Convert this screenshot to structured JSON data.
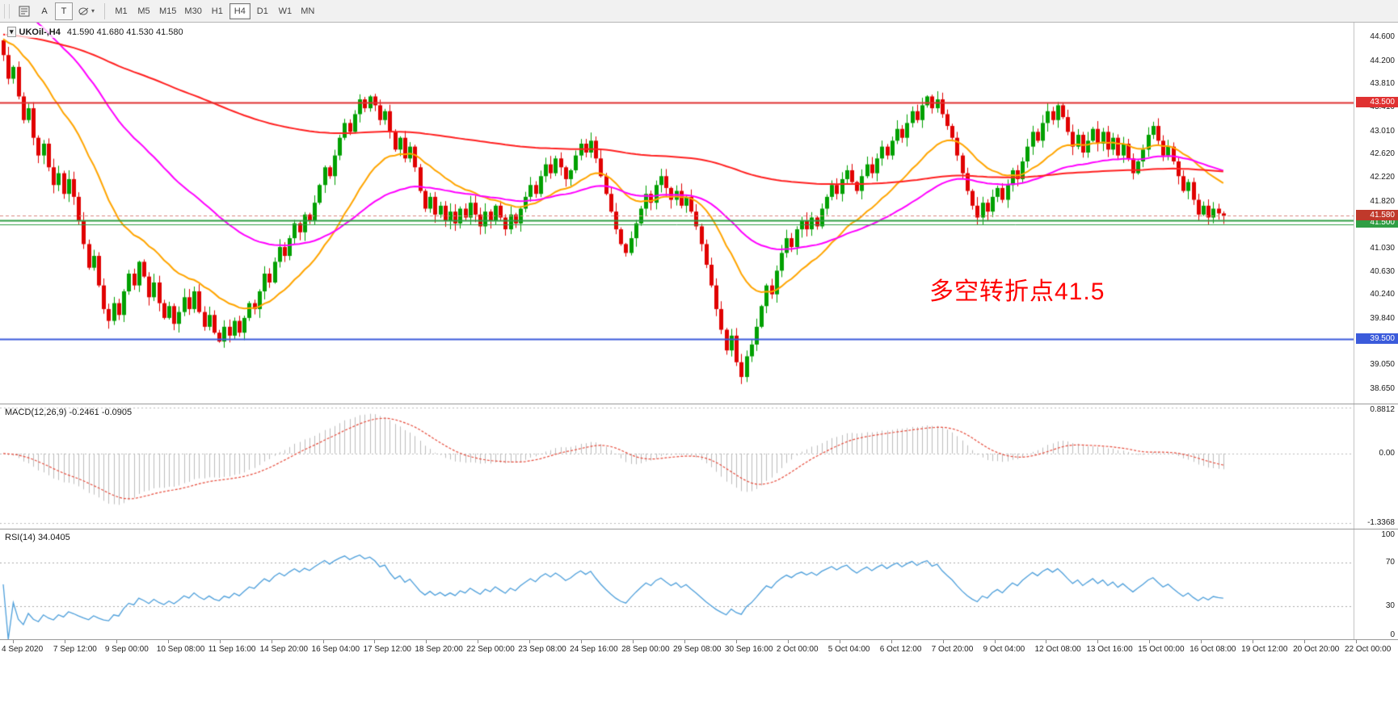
{
  "toolbar": {
    "tool_a_label": "A",
    "tool_t_label": "T",
    "timeframes": [
      "M1",
      "M5",
      "M15",
      "M30",
      "H1",
      "H4",
      "D1",
      "W1",
      "MN"
    ],
    "active_timeframe": "H4"
  },
  "main_chart": {
    "symbol": "UKOil-,H4",
    "ohlc": "41.590 41.680 41.530 41.580",
    "annotation": {
      "text": "多空转折点41.5",
      "color": "#FF0000"
    },
    "price_axis_labels": [
      "44.600",
      "44.200",
      "43.810",
      "43.410",
      "43.010",
      "42.620",
      "42.220",
      "41.820",
      "41.430",
      "41.030",
      "40.630",
      "40.240",
      "39.840",
      "39.440",
      "39.050",
      "38.650"
    ],
    "price_tags": [
      {
        "text": "43.500",
        "price": 43.5,
        "color": "#E03131"
      },
      {
        "text": "41.500",
        "price": 41.465,
        "color": "#2F9E44"
      },
      {
        "text": "41.580",
        "price": 41.58,
        "color": "#C0392B"
      },
      {
        "text": "39.500",
        "price": 39.5,
        "color": "#3B5BDB"
      }
    ],
    "hlines": [
      {
        "price": 43.5,
        "color": "#E03131",
        "width": 2,
        "dash": false
      },
      {
        "price": 41.5,
        "color": "#2F9E44",
        "width": 2,
        "dash": false
      },
      {
        "price": 41.43,
        "color": "#2F9E44",
        "width": 1,
        "dash": false
      },
      {
        "price": 39.5,
        "color": "#3B5BDB",
        "width": 2,
        "dash": false
      },
      {
        "price": 41.58,
        "color": "#D98880",
        "width": 1,
        "dash": true
      }
    ],
    "price_range": [
      38.4,
      44.85
    ]
  },
  "macd_panel": {
    "label": "MACD(12,26,9) -0.2461 -0.0905",
    "axis_labels": [
      {
        "text": "0.8812",
        "value": 0.8812
      },
      {
        "text": "0.00",
        "value": 0
      },
      {
        "text": "-1.3368",
        "value": -1.3368
      }
    ],
    "range": [
      -1.45,
      0.95
    ],
    "histogram_color": "#BDBDBD",
    "signal_color": "#E74C3C"
  },
  "rsi_panel": {
    "label": "RSI(14) 34.0405",
    "axis_labels": [
      {
        "text": "100",
        "value": 100
      },
      {
        "text": "70",
        "value": 70
      },
      {
        "text": "30",
        "value": 30
      },
      {
        "text": "0",
        "value": 0
      }
    ],
    "levels": [
      70,
      30
    ],
    "range": [
      0,
      100
    ],
    "line_color": "#4D9FDB"
  },
  "time_axis": [
    "4 Sep 2020",
    "7 Sep 12:00",
    "9 Sep 00:00",
    "10 Sep 08:00",
    "11 Sep 16:00",
    "14 Sep 20:00",
    "16 Sep 04:00",
    "17 Sep 12:00",
    "18 Sep 20:00",
    "22 Sep 00:00",
    "23 Sep 08:00",
    "24 Sep 16:00",
    "28 Sep 00:00",
    "29 Sep 08:00",
    "30 Sep 16:00",
    "2 Oct 00:00",
    "5 Oct 04:00",
    "6 Oct 12:00",
    "7 Oct 20:00",
    "9 Oct 04:00",
    "12 Oct 08:00",
    "13 Oct 16:00",
    "15 Oct 00:00",
    "16 Oct 08:00",
    "19 Oct 12:00",
    "20 Oct 20:00",
    "22 Oct 00:00"
  ],
  "chart_data": {
    "type": "candlestick",
    "title": "UKOil- H4",
    "up_color": "#00A000",
    "down_color": "#E00000",
    "ma_lines": [
      {
        "name": "fast",
        "period": 21,
        "color": "#FFA500"
      },
      {
        "name": "mid",
        "period": 55,
        "color": "#FF00FF"
      },
      {
        "name": "slow",
        "period": 220,
        "color": "#FF2020"
      }
    ],
    "closes": [
      44.3,
      43.9,
      44.1,
      43.6,
      43.2,
      43.4,
      42.9,
      42.6,
      42.8,
      42.4,
      42.1,
      42.3,
      41.95,
      42.2,
      41.9,
      41.5,
      41.1,
      40.7,
      40.9,
      40.4,
      40.0,
      39.8,
      40.1,
      39.9,
      40.3,
      40.6,
      40.4,
      40.8,
      40.55,
      40.2,
      40.45,
      40.1,
      39.85,
      40.05,
      39.75,
      39.95,
      40.2,
      40.0,
      40.3,
      39.95,
      39.7,
      39.9,
      39.6,
      39.45,
      39.7,
      39.55,
      39.8,
      39.6,
      39.85,
      40.1,
      40.0,
      40.3,
      40.6,
      40.45,
      40.8,
      41.05,
      40.9,
      41.2,
      41.45,
      41.3,
      41.6,
      41.5,
      41.8,
      42.1,
      42.4,
      42.25,
      42.6,
      42.9,
      43.15,
      43.0,
      43.3,
      43.55,
      43.4,
      43.6,
      43.45,
      43.2,
      43.35,
      43.0,
      42.7,
      42.9,
      42.55,
      42.75,
      42.4,
      42.0,
      41.7,
      41.9,
      41.6,
      41.75,
      41.5,
      41.65,
      41.45,
      41.7,
      41.55,
      41.8,
      41.6,
      41.4,
      41.65,
      41.5,
      41.75,
      41.55,
      41.35,
      41.6,
      41.45,
      41.7,
      41.9,
      42.1,
      41.95,
      42.25,
      42.45,
      42.3,
      42.55,
      42.4,
      42.2,
      42.35,
      42.6,
      42.8,
      42.65,
      42.85,
      42.55,
      42.25,
      41.95,
      41.65,
      41.35,
      41.1,
      40.95,
      41.2,
      41.45,
      41.7,
      41.95,
      41.8,
      42.1,
      42.25,
      42.05,
      41.85,
      42.0,
      41.75,
      41.9,
      41.65,
      41.4,
      41.1,
      40.75,
      40.4,
      40.0,
      39.65,
      39.3,
      39.55,
      39.1,
      38.85,
      39.2,
      39.4,
      39.7,
      40.05,
      40.4,
      40.25,
      40.65,
      40.95,
      41.2,
      41.05,
      41.35,
      41.5,
      41.35,
      41.55,
      41.4,
      41.7,
      41.9,
      42.1,
      41.95,
      42.2,
      42.35,
      42.15,
      42.0,
      42.25,
      42.45,
      42.3,
      42.55,
      42.75,
      42.6,
      42.85,
      43.05,
      42.9,
      43.15,
      43.35,
      43.2,
      43.45,
      43.6,
      43.4,
      43.55,
      43.3,
      43.1,
      42.9,
      42.6,
      42.3,
      42.0,
      41.75,
      41.55,
      41.8,
      41.65,
      41.9,
      42.05,
      41.85,
      42.1,
      42.35,
      42.2,
      42.5,
      42.75,
      43.0,
      42.85,
      43.15,
      43.35,
      43.2,
      43.45,
      43.25,
      43.0,
      42.75,
      42.95,
      42.65,
      42.85,
      43.05,
      42.8,
      43.0,
      42.7,
      42.9,
      42.6,
      42.8,
      42.55,
      42.3,
      42.5,
      42.7,
      42.95,
      43.1,
      42.85,
      42.6,
      42.75,
      42.5,
      42.25,
      42.0,
      42.15,
      41.85,
      41.6,
      41.75,
      41.55,
      41.7,
      41.62,
      41.58
    ]
  }
}
